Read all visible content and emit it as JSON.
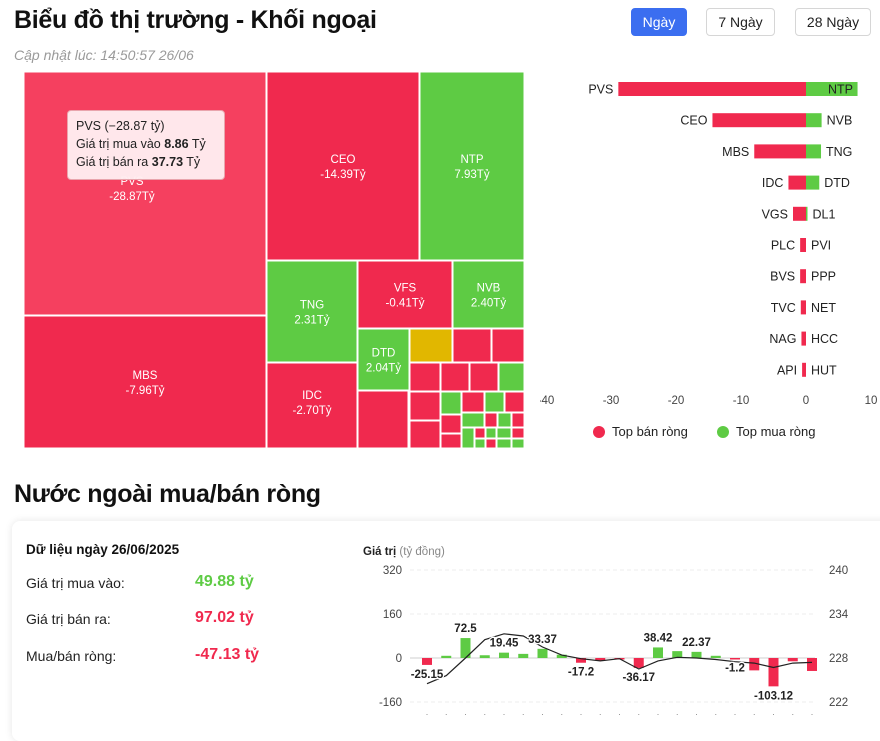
{
  "header": {
    "title": "Biểu đồ thị trường - Khối ngoại",
    "updated": "Cập nhật lúc: 14:50:57 26/06",
    "tabs": [
      {
        "label": "Ngày",
        "active": true
      },
      {
        "label": "7 Ngày",
        "active": false
      },
      {
        "label": "28 Ngày",
        "active": false
      }
    ]
  },
  "colors": {
    "sell": "#f0294e",
    "buy": "#5ecb44",
    "neutral": "#e1b700",
    "accent": "#3b6ef0"
  },
  "tooltip": {
    "line1": "PVS (−28.87 tỷ)",
    "buy_label": "Giá trị mua vào",
    "buy_value": "8.86",
    "sell_label": "Giá trị bán ra",
    "sell_value": "37.73",
    "unit": "Tỷ"
  },
  "chart_data": [
    {
      "type": "treemap",
      "title": "",
      "items": [
        {
          "name": "PVS",
          "value": -28.87,
          "label": "-28.87Tỷ"
        },
        {
          "name": "CEO",
          "value": -14.39,
          "label": "-14.39Tỷ"
        },
        {
          "name": "NTP",
          "value": 7.93,
          "label": "7.93Tỷ"
        },
        {
          "name": "MBS",
          "value": -7.96,
          "label": "-7.96Tỷ"
        },
        {
          "name": "TNG",
          "value": 2.31,
          "label": "2.31Tỷ"
        },
        {
          "name": "VFS",
          "value": -0.41,
          "label": "-0.41Tỷ"
        },
        {
          "name": "NVB",
          "value": 2.4,
          "label": "2.40Tỷ"
        },
        {
          "name": "IDC",
          "value": -2.7,
          "label": "-2.70Tỷ"
        },
        {
          "name": "DTD",
          "value": 2.04,
          "label": "2.04Tỷ"
        }
      ]
    },
    {
      "type": "bar",
      "orientation": "horizontal",
      "xlim": [
        -40,
        10
      ],
      "xticks": [
        -40,
        -30,
        -20,
        -10,
        0,
        10
      ],
      "rows": [
        {
          "sell": "PVS",
          "sell_value": -28.87,
          "buy": "NTP",
          "buy_value": 7.93
        },
        {
          "sell": "CEO",
          "sell_value": -14.39,
          "buy": "NVB",
          "buy_value": 2.4
        },
        {
          "sell": "MBS",
          "sell_value": -7.96,
          "buy": "TNG",
          "buy_value": 2.31
        },
        {
          "sell": "IDC",
          "sell_value": -2.7,
          "buy": "DTD",
          "buy_value": 2.04
        },
        {
          "sell": "VGS",
          "sell_value": -2.0,
          "buy": "DL1",
          "buy_value": 0.2
        },
        {
          "sell": "PLC",
          "sell_value": -0.9,
          "buy": "PVI",
          "buy_value": 0
        },
        {
          "sell": "BVS",
          "sell_value": -0.9,
          "buy": "PPP",
          "buy_value": 0
        },
        {
          "sell": "TVC",
          "sell_value": -0.8,
          "buy": "NET",
          "buy_value": 0
        },
        {
          "sell": "NAG",
          "sell_value": -0.7,
          "buy": "HCC",
          "buy_value": 0
        },
        {
          "sell": "API",
          "sell_value": -0.6,
          "buy": "HUT",
          "buy_value": 0
        }
      ],
      "legend": [
        {
          "name": "Top bán ròng",
          "color": "#f0294e"
        },
        {
          "name": "Top mua ròng",
          "color": "#5ecb44"
        }
      ],
      "legend_position": "bottom"
    },
    {
      "type": "bar-line",
      "ylabel": "Giá trị",
      "yunit": "(tỷ đồng)",
      "ylim": [
        -160,
        320
      ],
      "yticks": [
        320,
        160,
        0,
        -160
      ],
      "y2lim": [
        222,
        240
      ],
      "y2ticks": [
        240,
        234,
        228,
        222
      ],
      "values": [
        -25.15,
        8,
        72.5,
        10,
        19.45,
        15,
        33.37,
        12,
        -17.2,
        -10,
        -5,
        -36.17,
        38.42,
        25,
        22.37,
        8,
        -1.2,
        -45,
        -103.12,
        -12,
        -47.13
      ],
      "labels": {
        "0": "-25.15",
        "2": "72.5",
        "4": "19.45",
        "6": "33.37",
        "8": "-17.2",
        "11": "-36.17",
        "12": "38.42",
        "14": "22.37",
        "16": "-1.2",
        "18": "-103.12"
      },
      "line": [
        224.5,
        225.6,
        228.0,
        230.5,
        231.3,
        231.0,
        229.5,
        228.4,
        227.9,
        227.6,
        227.9,
        226.5,
        227.6,
        228.1,
        228.0,
        227.8,
        227.5,
        227.3,
        226.7,
        227.3,
        227.4
      ]
    }
  ],
  "daily": {
    "title": "Dữ liệu ngày 26/06/2025",
    "rows": [
      {
        "label": "Giá trị mua vào:",
        "value": "49.88 tỷ",
        "color": "#5ecb44"
      },
      {
        "label": "Giá trị bán ra:",
        "value": "97.02 tỷ",
        "color": "#f0294e"
      },
      {
        "label": "Mua/bán ròng:",
        "value": "-47.13 tỷ",
        "color": "#f0294e"
      }
    ]
  },
  "section2": {
    "title": "Nước ngoài mua/bán ròng"
  }
}
